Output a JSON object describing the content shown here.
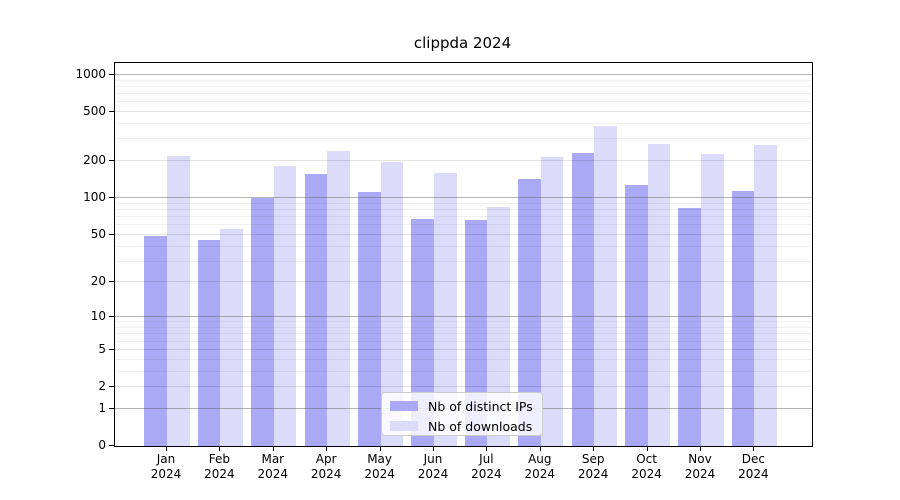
{
  "title": "clippda 2024",
  "legend": {
    "items": [
      {
        "label": "Nb of distinct IPs",
        "color": "#a9a9f5"
      },
      {
        "label": "Nb of downloads",
        "color": "#dcdcfa"
      }
    ]
  },
  "chart_data": {
    "type": "bar",
    "title": "clippda 2024",
    "xlabel": "",
    "ylabel": "",
    "yscale": "log1p",
    "ylim": [
      0,
      1255
    ],
    "grid": true,
    "legend_position": "lower center",
    "categories": [
      "Jan",
      "Feb",
      "Mar",
      "Apr",
      "May",
      "Jun",
      "Jul",
      "Aug",
      "Sep",
      "Oct",
      "Nov",
      "Dec"
    ],
    "x_year_label": "2024",
    "x_tick_labels": [
      "Jan 2024",
      "Feb 2024",
      "Mar 2024",
      "Apr 2024",
      "May 2024",
      "Jun 2024",
      "Jul 2024",
      "Aug 2024",
      "Sep 2024",
      "Oct 2024",
      "Nov 2024",
      "Dec 2024"
    ],
    "series": [
      {
        "name": "Nb of distinct IPs",
        "color": "#a9a9f5",
        "values": [
          49,
          45,
          101,
          158,
          113,
          67,
          66,
          142,
          233,
          129,
          83,
          114
        ]
      },
      {
        "name": "Nb of downloads",
        "color": "#dcdcfa",
        "values": [
          219,
          56,
          181,
          240,
          197,
          160,
          85,
          217,
          383,
          274,
          227,
          271
        ]
      }
    ],
    "y_ticks": [
      0,
      1,
      2,
      5,
      10,
      20,
      50,
      100,
      200,
      500,
      1000
    ],
    "y_tick_labels": [
      "0",
      "1",
      "2",
      "5",
      "10",
      "20",
      "50",
      "100",
      "200",
      "500",
      "1000"
    ],
    "y_minor_gridlines": [
      3,
      4,
      6,
      7,
      8,
      9,
      30,
      40,
      60,
      70,
      80,
      90,
      300,
      400,
      600,
      700,
      800,
      900
    ]
  }
}
